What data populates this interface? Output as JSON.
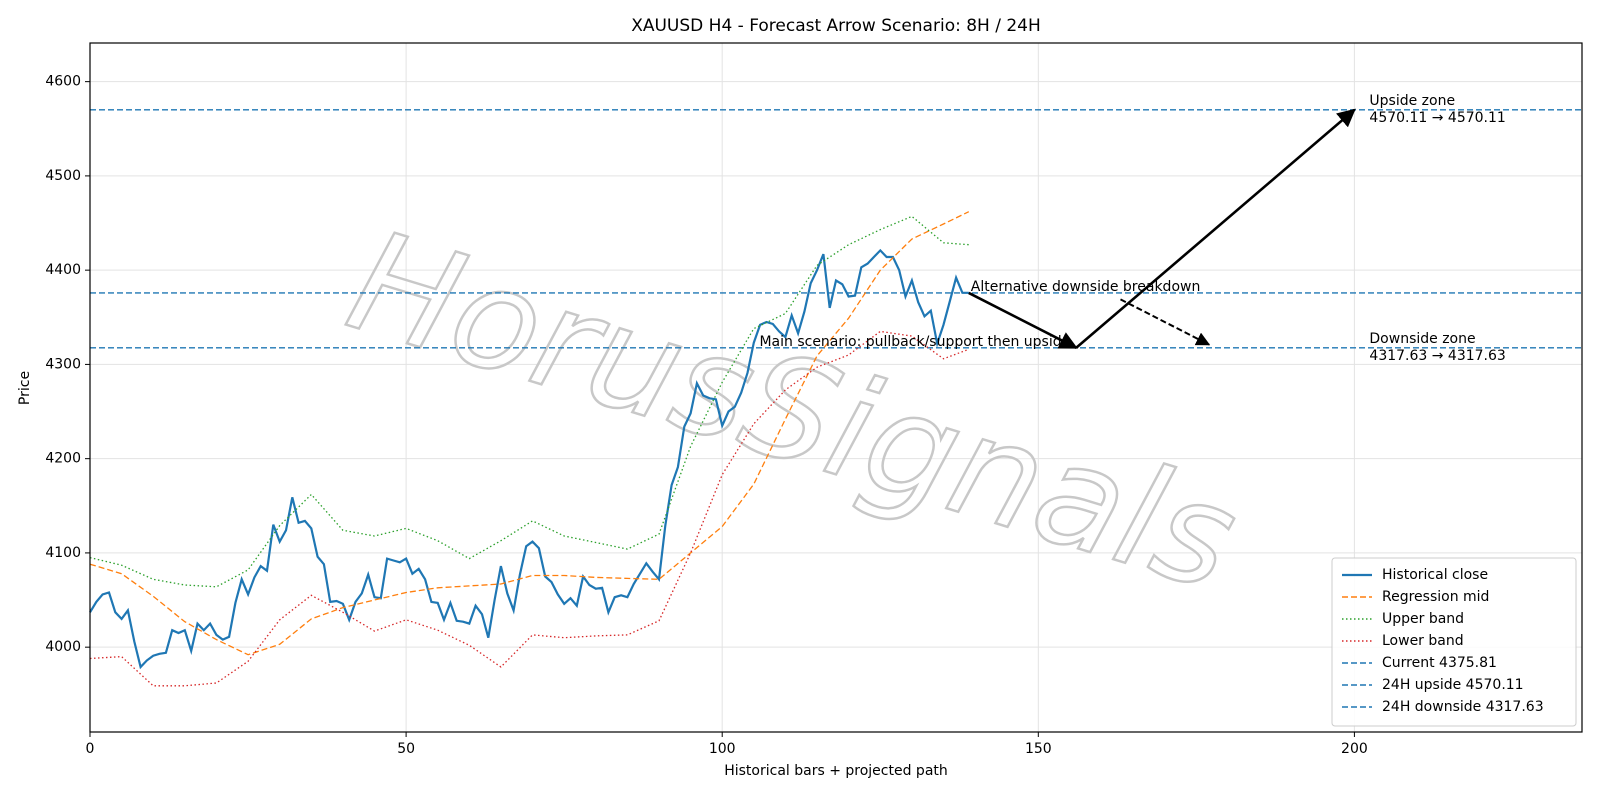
{
  "chart_data": {
    "type": "line",
    "title": "XAUUSD H4 - Forecast Arrow Scenario: 8H / 24H",
    "x_label": "Historical bars + projected path",
    "y_label": "Price",
    "watermark": "HorusSignals",
    "xlim": [
      0,
      236
    ],
    "ylim": [
      3910,
      4641
    ],
    "xticks": [
      0,
      50,
      100,
      150,
      200
    ],
    "yticks": [
      4000,
      4100,
      4200,
      4300,
      4400,
      4500,
      4600
    ],
    "grid": true,
    "legend": "lower right",
    "series": [
      {
        "name": "Historical close",
        "color": "#1f77b4",
        "style": "solid",
        "x": [
          0,
          1,
          2,
          3,
          4,
          5,
          6,
          7,
          8,
          9,
          10,
          11,
          12,
          13,
          14,
          15,
          16,
          17,
          18,
          19,
          20,
          21,
          22,
          23,
          24,
          25,
          26,
          27,
          28,
          29,
          30,
          31,
          32,
          33,
          34,
          35,
          36,
          37,
          38,
          39,
          40,
          41,
          42,
          43,
          44,
          45,
          46,
          47,
          48,
          49,
          50,
          51,
          52,
          53,
          54,
          55,
          56,
          57,
          58,
          59,
          60,
          61,
          62,
          63,
          64,
          65,
          66,
          67,
          68,
          69,
          70,
          71,
          72,
          73,
          74,
          75,
          76,
          77,
          78,
          79,
          80,
          81,
          82,
          83,
          84,
          85,
          86,
          87,
          88,
          89,
          90,
          91,
          92,
          93,
          94,
          95,
          96,
          97,
          98,
          99,
          100,
          101,
          102,
          103,
          104,
          105,
          106,
          107,
          108,
          109,
          110,
          111,
          112,
          113,
          114,
          115,
          116,
          117,
          118,
          119,
          120,
          121,
          122,
          123,
          124,
          125,
          126,
          127,
          128,
          129,
          130,
          131,
          132,
          133,
          134,
          135,
          136,
          137,
          138,
          139
        ],
        "values": [
          4037,
          4048,
          4056,
          4058,
          4037,
          4030,
          4039,
          4006,
          3979,
          3986,
          3991,
          3993,
          3994,
          4018,
          4015,
          4018,
          3996,
          4025,
          4018,
          4025,
          4013,
          4008,
          4011,
          4047,
          4072,
          4056,
          4074,
          4086,
          4081,
          4130,
          4112,
          4124,
          4159,
          4132,
          4134,
          4126,
          4096,
          4088,
          4048,
          4049,
          4046,
          4029,
          4048,
          4057,
          4077,
          4053,
          4052,
          4094,
          4092,
          4090,
          4094,
          4078,
          4083,
          4072,
          4048,
          4047,
          4029,
          4047,
          4028,
          4027,
          4025,
          4044,
          4035,
          4010,
          4050,
          4086,
          4057,
          4039,
          4077,
          4107,
          4112,
          4105,
          4075,
          4069,
          4056,
          4046,
          4052,
          4044,
          4075,
          4066,
          4062,
          4063,
          4037,
          4053,
          4055,
          4053,
          4067,
          4078,
          4089,
          4080,
          4072,
          4129,
          4172,
          4191,
          4234,
          4248,
          4280,
          4267,
          4264,
          4263,
          4235,
          4250,
          4255,
          4270,
          4291,
          4323,
          4342,
          4345,
          4343,
          4335,
          4329,
          4352,
          4333,
          4356,
          4386,
          4400,
          4417,
          4360,
          4389,
          4385,
          4372,
          4373,
          4403,
          4407,
          4414,
          4421,
          4414,
          4414,
          4400,
          4372,
          4389,
          4366,
          4351,
          4357,
          4322,
          4342,
          4367,
          4392,
          4376,
          4376
        ]
      },
      {
        "name": "Regression mid",
        "color": "#ff7f0e",
        "style": "dashed",
        "x": [
          0,
          5,
          10,
          15,
          20,
          25,
          30,
          35,
          40,
          45,
          50,
          55,
          60,
          65,
          70,
          75,
          80,
          85,
          90,
          95,
          100,
          105,
          110,
          115,
          120,
          125,
          130,
          135,
          139
        ],
        "values": [
          4088,
          4078,
          4054,
          4027,
          4008,
          3992,
          4003,
          4030,
          4042,
          4050,
          4058,
          4063,
          4065,
          4067,
          4076,
          4076,
          4074,
          4073,
          4072,
          4100,
          4128,
          4173,
          4242,
          4309,
          4349,
          4400,
          4433,
          4449,
          4462
        ]
      },
      {
        "name": "Upper band",
        "color": "#2ca02c",
        "style": "dotted",
        "x": [
          0,
          5,
          10,
          15,
          20,
          25,
          30,
          35,
          40,
          45,
          50,
          55,
          60,
          65,
          70,
          75,
          80,
          85,
          90,
          95,
          100,
          105,
          110,
          115,
          120,
          125,
          130,
          135,
          139
        ],
        "values": [
          4095,
          4087,
          4072,
          4066,
          4064,
          4082,
          4129,
          4162,
          4124,
          4118,
          4126,
          4113,
          4094,
          4113,
          4134,
          4118,
          4111,
          4104,
          4120,
          4213,
          4281,
          4338,
          4354,
          4405,
          4427,
          4443,
          4457,
          4429,
          4427
        ]
      },
      {
        "name": "Lower band",
        "color": "#d62728",
        "style": "dotted",
        "x": [
          0,
          5,
          10,
          15,
          20,
          25,
          30,
          35,
          40,
          45,
          50,
          55,
          60,
          65,
          70,
          75,
          80,
          85,
          90,
          95,
          100,
          105,
          110,
          115,
          120,
          125,
          130,
          135,
          139
        ],
        "values": [
          3988,
          3990,
          3959,
          3959,
          3962,
          3985,
          4029,
          4055,
          4037,
          4017,
          4029,
          4018,
          4002,
          3979,
          4013,
          4010,
          4012,
          4013,
          4028,
          4100,
          4183,
          4237,
          4273,
          4297,
          4310,
          4335,
          4330,
          4306,
          4316
        ]
      }
    ],
    "hlines": [
      {
        "name": "Current 4375.81",
        "value": 4375.81,
        "color": "#1f77b4"
      },
      {
        "name": "24H upside 4570.11",
        "value": 4570.11,
        "color": "#1f77b4"
      },
      {
        "name": "24H downside 4317.63",
        "value": 4317.63,
        "color": "#1f77b4"
      }
    ],
    "arrows": [
      {
        "x": [
          139,
          156
        ],
        "y": [
          4375.81,
          4317.63
        ],
        "style": "solid"
      },
      {
        "x": [
          156,
          200
        ],
        "y": [
          4317.63,
          4570.11
        ],
        "style": "solid"
      },
      {
        "x": [
          163,
          177
        ],
        "y": [
          4369,
          4321
        ],
        "style": "dashed"
      }
    ],
    "annotations": [
      "Main scenario: pullback/support then upside",
      "Alternative downside breakdown"
    ],
    "zones": [
      {
        "title": "Upside zone",
        "range": "4570.11 → 4570.11"
      },
      {
        "title": "Downside zone",
        "range": "4317.63 → 4317.63"
      }
    ]
  }
}
